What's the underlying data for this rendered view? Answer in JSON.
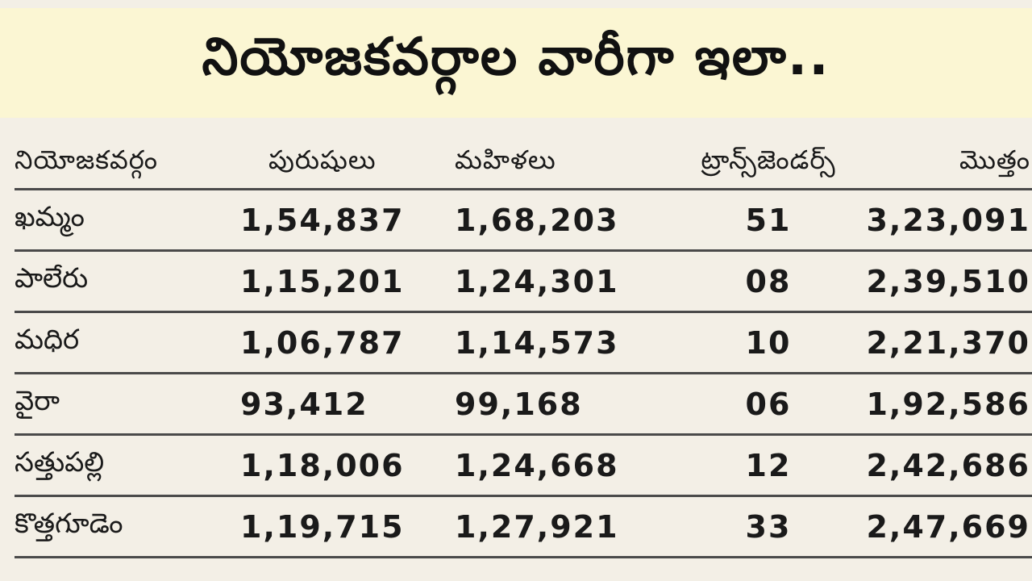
{
  "title": "నియోజకవర్గాల వారీగా ఇలా..",
  "table": {
    "headers": {
      "constituency": "నియోజకవర్గం",
      "men": "పురుషులు",
      "women": "మహిళలు",
      "transgenders": "ట్రాన్స్‌జెండర్స్",
      "total": "మొత్తం"
    },
    "rows": [
      {
        "constituency": "ఖమ్మం",
        "men": "1,54,837",
        "women": "1,68,203",
        "transgenders": "51",
        "total": "3,23,091"
      },
      {
        "constituency": "పాలేరు",
        "men": "1,15,201",
        "women": "1,24,301",
        "transgenders": "08",
        "total": "2,39,510"
      },
      {
        "constituency": "మధిర",
        "men": "1,06,787",
        "women": "1,14,573",
        "transgenders": "10",
        "total": "2,21,370"
      },
      {
        "constituency": "వైరా",
        "men": "93,412",
        "women": "99,168",
        "transgenders": "06",
        "total": "1,92,586"
      },
      {
        "constituency": "సత్తుపల్లి",
        "men": "1,18,006",
        "women": "1,24,668",
        "transgenders": "12",
        "total": "2,42,686"
      },
      {
        "constituency": "కొత్తగూడెం",
        "men": "1,19,715",
        "women": "1,27,921",
        "transgenders": "33",
        "total": "2,47,669"
      }
    ]
  }
}
